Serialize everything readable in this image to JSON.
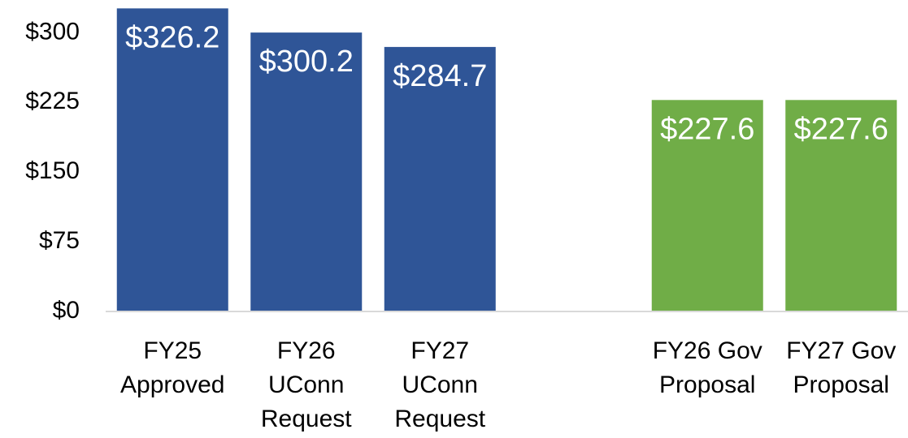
{
  "chart_data": {
    "type": "bar",
    "categories": [
      "FY25\nApproved",
      "FY26\nUConn\nRequest",
      "FY27\nUConn\nRequest",
      null,
      "FY26 Gov\nProposal",
      "FY27 Gov\nProposal"
    ],
    "values": [
      326.2,
      300.2,
      284.7,
      null,
      227.6,
      227.6
    ],
    "value_labels": [
      "$326.2",
      "$300.2",
      "$284.7",
      null,
      "$227.6",
      "$227.6"
    ],
    "colors": [
      "#2f5597",
      "#2f5597",
      "#2f5597",
      null,
      "#70ad47",
      "#70ad47"
    ],
    "ylim": [
      0,
      330
    ],
    "yticks": [
      {
        "value": 0,
        "label": "$0"
      },
      {
        "value": 75,
        "label": "$75"
      },
      {
        "value": 150,
        "label": "$150"
      },
      {
        "value": 225,
        "label": "$225"
      },
      {
        "value": 300,
        "label": "$300"
      }
    ],
    "grid": false
  }
}
